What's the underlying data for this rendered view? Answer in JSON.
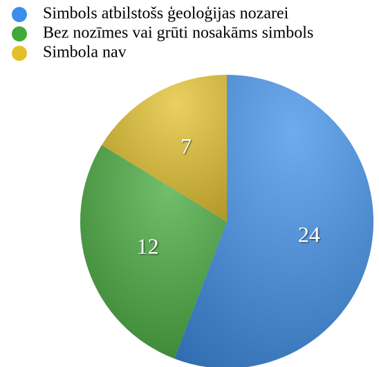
{
  "chart_data": {
    "type": "pie",
    "categories": [
      "Simbols atbilstošs ģeoloģijas nozarei",
      "Bez nozīmes vai grūti nosakāms simbols",
      "Simbola nav"
    ],
    "values": [
      24,
      12,
      7
    ],
    "colors": [
      "#3d8ee8",
      "#43a83a",
      "#e2c02a"
    ],
    "legend": "top-left"
  }
}
